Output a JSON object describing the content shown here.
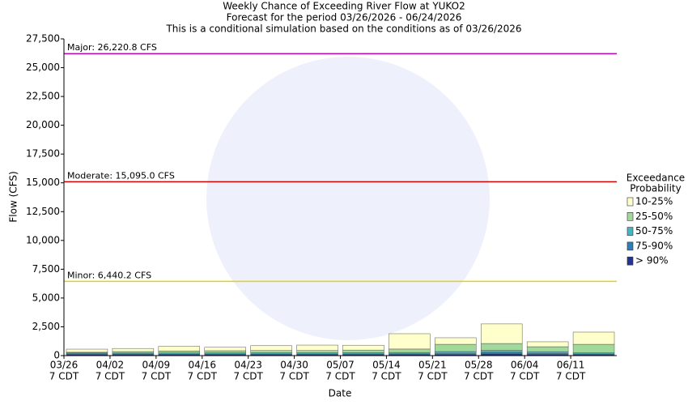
{
  "chart_data": {
    "type": "stacked_bar",
    "title": "Weekly Chance of Exceeding River Flow at YUKO2",
    "subtitle": "Forecast for the period 03/26/2026 - 06/24/2026",
    "note": "This is a conditional simulation based on the conditions as of 03/26/2026",
    "x_label": "Date",
    "y_label": "Flow (CFS)",
    "categories": [
      "03/26",
      "04/02",
      "04/09",
      "04/16",
      "04/23",
      "04/30",
      "05/07",
      "05/14",
      "05/21",
      "05/28",
      "06/04",
      "06/11"
    ],
    "category_time": "7 CDT",
    "ylim": [
      0,
      27500
    ],
    "yticks": [
      0,
      {
        "value": 2500,
        "label": "2,500"
      },
      {
        "value": 5000,
        "label": "5,000"
      },
      {
        "value": 7500,
        "label": "7,500"
      },
      {
        "value": 10000,
        "label": "10,000"
      },
      {
        "value": 12500,
        "label": "12,500"
      },
      {
        "value": 15000,
        "label": "15,000"
      },
      {
        "value": 17500,
        "label": "17,500"
      },
      {
        "value": 20000,
        "label": "20,000"
      },
      {
        "value": 22500,
        "label": "22,500"
      },
      {
        "value": 25000,
        "label": "25,000"
      },
      {
        "value": 27500,
        "label": "27,500"
      }
    ],
    "legend_title": [
      "Exceedance",
      "Probability"
    ],
    "legend_position": "right",
    "series": [
      {
        "name": "> 90%",
        "color": "#253494",
        "values": [
          100,
          80,
          80,
          80,
          80,
          80,
          80,
          90,
          90,
          150,
          100,
          80
        ]
      },
      {
        "name": "75-90%",
        "color": "#2c7fb8",
        "values": [
          60,
          60,
          60,
          60,
          60,
          60,
          60,
          60,
          80,
          130,
          80,
          60
        ]
      },
      {
        "name": "50-75%",
        "color": "#41b6c4",
        "values": [
          70,
          80,
          90,
          100,
          100,
          100,
          110,
          120,
          180,
          170,
          160,
          100
        ]
      },
      {
        "name": "25-50%",
        "color": "#a1d99b",
        "values": [
          60,
          130,
          170,
          180,
          200,
          200,
          230,
          300,
          630,
          600,
          430,
          740
        ]
      },
      {
        "name": "10-25%",
        "color": "#ffffcc",
        "values": [
          270,
          270,
          400,
          300,
          420,
          470,
          420,
          1330,
          570,
          1700,
          430,
          1060
        ]
      }
    ],
    "thresholds": [
      {
        "label": "Major: 26,220.8 CFS",
        "value": 26220.8,
        "color": "#cc00cc"
      },
      {
        "label": "Moderate: 15,095.0 CFS",
        "value": 15095.0,
        "color": "#dd0000"
      },
      {
        "label": "Minor: 6,440.2 CFS",
        "value": 6440.2,
        "color": "#e6d200"
      }
    ]
  }
}
